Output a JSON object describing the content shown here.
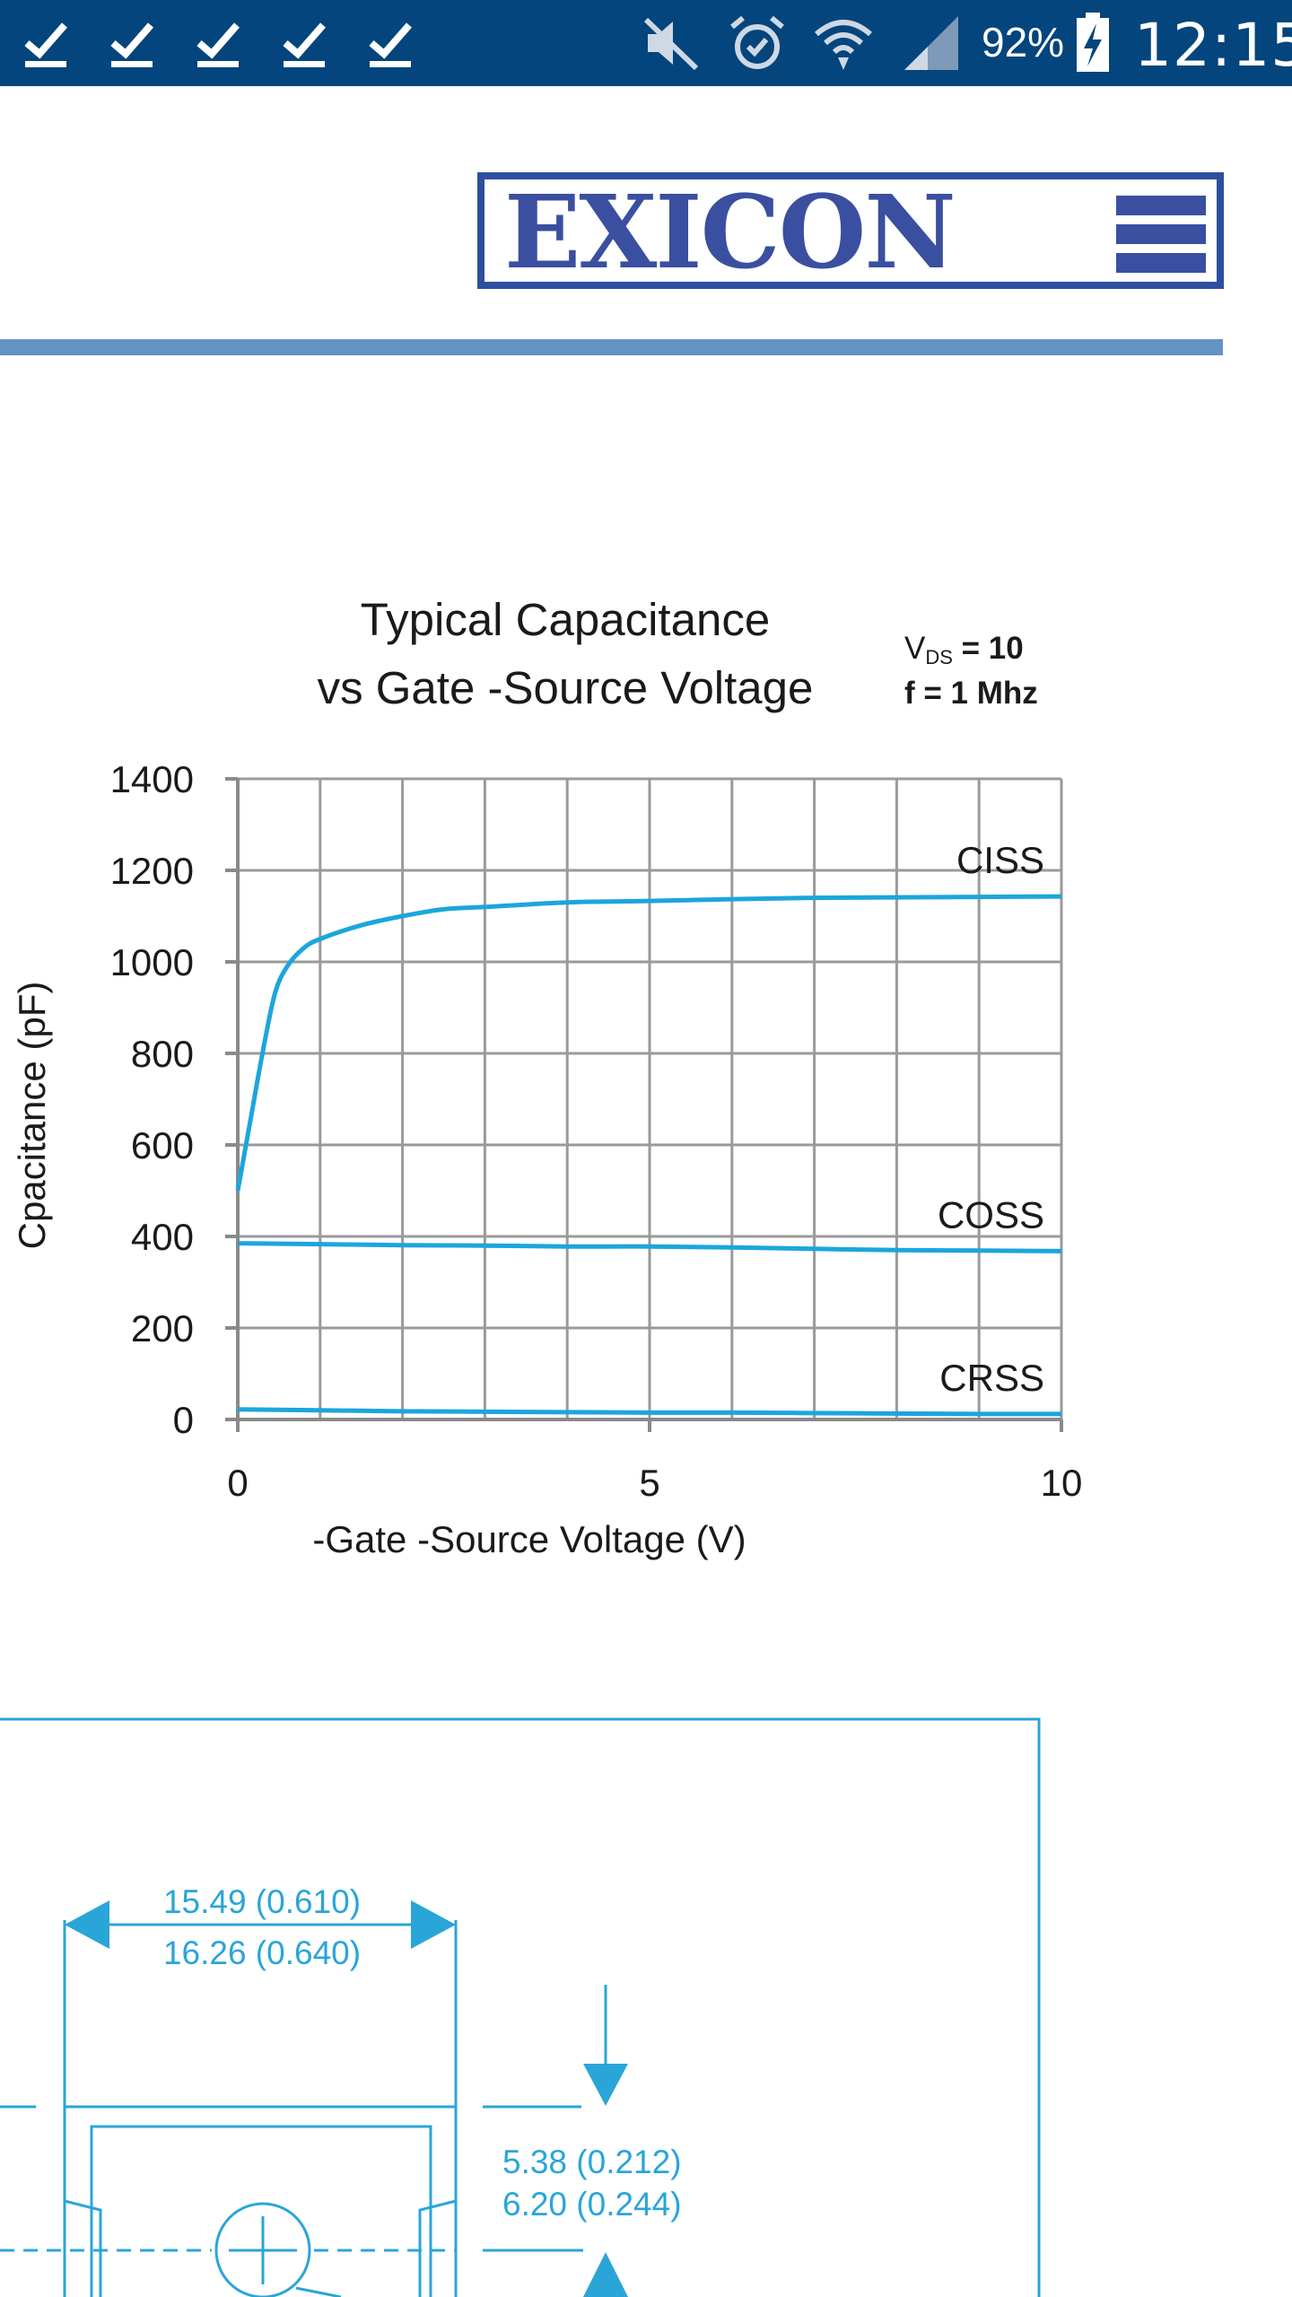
{
  "status_bar": {
    "notification_icons": [
      "check-icon",
      "check-icon",
      "check-icon",
      "check-icon",
      "check-icon"
    ],
    "system_icons": [
      "mute-icon",
      "alarm-icon",
      "wifi-icon",
      "signal-icon",
      "battery-charging-icon"
    ],
    "battery": "92%",
    "time": "12:15",
    "background": "#03457c"
  },
  "header": {
    "logo_text": "EXICON",
    "brand_color": "#3a4fa0",
    "rule_color": "#6294c3"
  },
  "chart_data": {
    "type": "line",
    "title": [
      "Typical Capacitance",
      "vs Gate -Source Voltage"
    ],
    "conditions": {
      "vds_symbol": "V",
      "vds_subscript": "DS",
      "vds_value": " = 10",
      "freq": "f = 1 Mhz"
    },
    "xlabel": "-Gate -Source Voltage (V)",
    "ylabel": "Cpacitance (pF)",
    "xlim": [
      0,
      10
    ],
    "ylim": [
      0,
      1400
    ],
    "x_ticks": [
      0,
      5,
      10
    ],
    "y_ticks": [
      0,
      200,
      400,
      600,
      800,
      1000,
      1200,
      1400
    ],
    "x_gridlines": [
      0,
      1,
      2,
      3,
      4,
      5,
      6,
      7,
      8,
      9,
      10
    ],
    "grid": true,
    "line_color": "#1ba6dc",
    "series": [
      {
        "name": "CISS",
        "x": [
          0,
          0.15,
          0.3,
          0.45,
          0.6,
          0.8,
          1.0,
          1.5,
          2.0,
          2.5,
          3,
          4,
          5,
          6,
          7,
          8,
          9,
          10
        ],
        "values": [
          500,
          650,
          800,
          930,
          990,
          1030,
          1050,
          1080,
          1100,
          1115,
          1120,
          1130,
          1133,
          1137,
          1140,
          1141,
          1142,
          1143
        ]
      },
      {
        "name": "COSS",
        "x": [
          0,
          1,
          2,
          3,
          4,
          5,
          6,
          7,
          8,
          9,
          10
        ],
        "values": [
          385,
          383,
          381,
          380,
          378,
          378,
          376,
          373,
          370,
          369,
          368
        ]
      },
      {
        "name": "CRSS",
        "x": [
          0,
          1,
          2,
          3,
          4,
          5,
          6,
          7,
          8,
          9,
          10
        ],
        "values": [
          22,
          20,
          18,
          17,
          16,
          15,
          15,
          14,
          13,
          12,
          12
        ]
      }
    ]
  },
  "drawing": {
    "dim_width": [
      "15.49 (0.610)",
      "16.26 (0.640)"
    ],
    "dim_height": [
      "5.38 (0.212)",
      "6.20 (0.244)"
    ],
    "color": "#2aa5d8"
  }
}
